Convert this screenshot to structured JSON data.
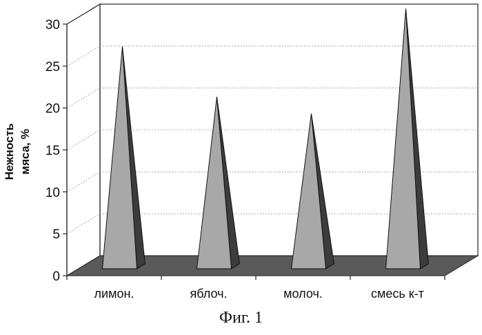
{
  "chart_data": {
    "type": "bar",
    "style": "3d-pyramid",
    "categories": [
      "лимон.",
      "яблоч.",
      "молоч.",
      "смесь к-т"
    ],
    "values": [
      26.5,
      20.5,
      18.5,
      31
    ],
    "ylabel_line1": "Нежность",
    "ylabel_line2": "мяса, %",
    "ylim": [
      0,
      30
    ],
    "yticks": [
      "0",
      "5",
      "10",
      "15",
      "20",
      "25",
      "30"
    ],
    "grid": true,
    "colors": {
      "front_face": "#a8a8a8",
      "side_face": "#3c3c3c",
      "floor": "#5a5a5a"
    }
  },
  "caption": "Фиг. 1"
}
